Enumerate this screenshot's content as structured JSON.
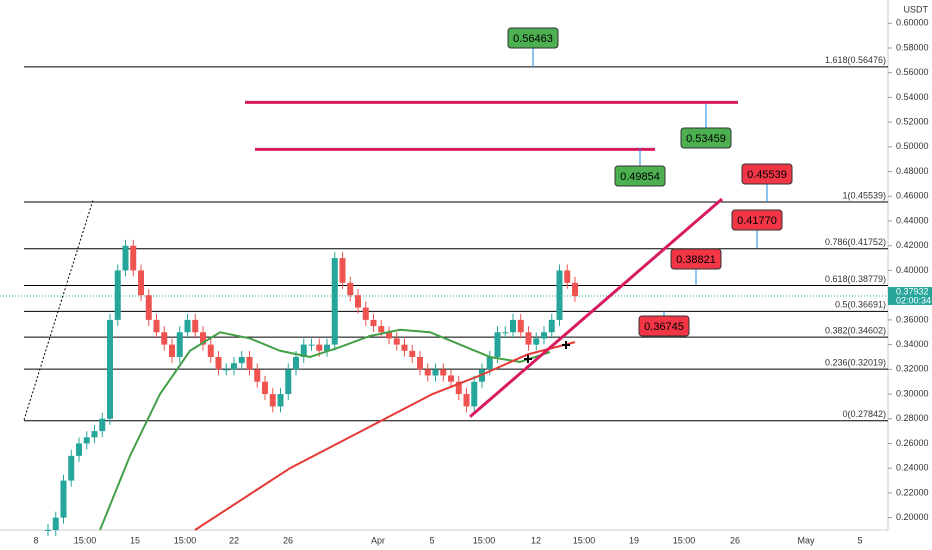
{
  "chart_data": {
    "type": "candlestick",
    "currency": "USDT",
    "ylim": [
      0.19,
      0.6075
    ],
    "yticks": [
      {
        "value": 0.2,
        "label": "0.20000"
      },
      {
        "value": 0.22,
        "label": "0.22000"
      },
      {
        "value": 0.24,
        "label": "0.24000"
      },
      {
        "value": 0.26,
        "label": "0.26000"
      },
      {
        "value": 0.28,
        "label": "0.28000"
      },
      {
        "value": 0.3,
        "label": "0.30000"
      },
      {
        "value": 0.32,
        "label": "0.32000"
      },
      {
        "value": 0.34,
        "label": "0.34000"
      },
      {
        "value": 0.36,
        "label": "0.36000"
      },
      {
        "value": 0.38,
        "label": "0.38000"
      },
      {
        "value": 0.4,
        "label": "0.40000"
      },
      {
        "value": 0.42,
        "label": "0.42000"
      },
      {
        "value": 0.44,
        "label": "0.44000"
      },
      {
        "value": 0.46,
        "label": "0.46000"
      },
      {
        "value": 0.48,
        "label": "0.48000"
      },
      {
        "value": 0.5,
        "label": "0.50000"
      },
      {
        "value": 0.52,
        "label": "0.52000"
      },
      {
        "value": 0.54,
        "label": "0.54000"
      },
      {
        "value": 0.56,
        "label": "0.56000"
      },
      {
        "value": 0.58,
        "label": "0.58000"
      },
      {
        "value": 0.6,
        "label": "0.60000"
      }
    ],
    "categories": [
      "8",
      "15:00",
      "15",
      "15:00",
      "22",
      "26",
      "Apr",
      "5",
      "15:00",
      "12",
      "15:00",
      "19",
      "15:00",
      "26",
      "May",
      "5"
    ],
    "closes": [
      0.19,
      0.2,
      0.23,
      0.25,
      0.26,
      0.265,
      0.27,
      0.28,
      0.36,
      0.4,
      0.42,
      0.4,
      0.38,
      0.36,
      0.35,
      0.34,
      0.33,
      0.35,
      0.36,
      0.35,
      0.34,
      0.33,
      0.32,
      0.32,
      0.325,
      0.33,
      0.32,
      0.31,
      0.3,
      0.29,
      0.3,
      0.32,
      0.33,
      0.34,
      0.34,
      0.335,
      0.34,
      0.41,
      0.39,
      0.38,
      0.37,
      0.36,
      0.355,
      0.35,
      0.345,
      0.34,
      0.335,
      0.33,
      0.32,
      0.315,
      0.32,
      0.315,
      0.31,
      0.3,
      0.29,
      0.31,
      0.32,
      0.33,
      0.35,
      0.35,
      0.36,
      0.35,
      0.34,
      0.345,
      0.35,
      0.36,
      0.4,
      0.39,
      0.3793
    ],
    "ma_fast": {
      "color": "#43a047",
      "values": [
        0.19,
        0.25,
        0.3,
        0.335,
        0.35,
        0.345,
        0.335,
        0.33,
        0.338,
        0.347,
        0.352,
        0.35,
        0.34,
        0.33,
        0.326,
        0.334
      ]
    },
    "ma_slow": {
      "color": "#e53935",
      "values": [
        0.19,
        0.215,
        0.24,
        0.26,
        0.28,
        0.3,
        0.315,
        0.332,
        0.342
      ]
    },
    "fib_levels": [
      {
        "value": 0.56476,
        "label": "1.618(0.56476)"
      },
      {
        "value": 0.45539,
        "label": "1(0.45539)"
      },
      {
        "value": 0.41752,
        "label": "0.786(0.41752)"
      },
      {
        "value": 0.38779,
        "label": "0.618(0.38779)"
      },
      {
        "value": 0.36691,
        "label": "0.5(0.36691)"
      },
      {
        "value": 0.34602,
        "label": "0.382(0.34602)"
      },
      {
        "value": 0.32019,
        "label": "0.236(0.32019)"
      },
      {
        "value": 0.27842,
        "label": "0(0.27842)"
      }
    ],
    "targets": {
      "values": [
        0.56463,
        0.53459,
        0.49854,
        0.45539,
        0.4177,
        0.38821,
        0.36745
      ],
      "value_labels": [
        "0.56463",
        "0.53459",
        "0.49854",
        "0.45539",
        "0.41770",
        "0.38821",
        "0.36745"
      ],
      "colors": [
        "#4caf50",
        "#4caf50",
        "#4caf50",
        "#f23645",
        "#f23645",
        "#f23645",
        "#f23645"
      ]
    },
    "resistance_lines": [
      0.536,
      0.498
    ],
    "trendline": [
      0.2816,
      0.4578
    ],
    "last_price": {
      "value": 0.37932,
      "label": "0.37932",
      "countdown": "02:00:34",
      "color": "#26a69a"
    }
  }
}
